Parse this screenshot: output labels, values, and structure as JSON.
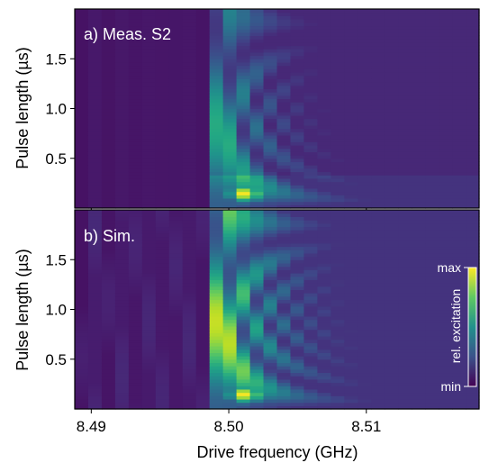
{
  "chart_data": [
    {
      "type": "heatmap",
      "panel_label": "a) Meas. S2",
      "xlabel": "",
      "ylabel": "Pulse length (µs)",
      "xlim": [
        8.4888,
        8.5182
      ],
      "ylim": [
        0.0,
        2.0
      ],
      "x_ticks": [
        8.49,
        8.5,
        8.51
      ],
      "y_ticks": [
        0.5,
        1.0,
        1.5
      ],
      "y_tick_labels": [
        "0.5",
        "1.0",
        "1.5"
      ],
      "resonance_center_ghz": 8.5003,
      "colormap": "viridis",
      "peak_region": {
        "x": 8.5012,
        "y": 0.15
      }
    },
    {
      "type": "heatmap",
      "panel_label": "b) Sim.",
      "xlabel": "Drive frequency (GHz)",
      "ylabel": "Pulse length (µs)",
      "xlim": [
        8.4888,
        8.5182
      ],
      "ylim": [
        0.0,
        2.0
      ],
      "x_ticks": [
        8.49,
        8.5,
        8.51
      ],
      "x_tick_labels": [
        "8.49",
        "8.50",
        "8.51"
      ],
      "y_ticks": [
        0.5,
        1.0,
        1.5
      ],
      "y_tick_labels": [
        "0.5",
        "1.0",
        "1.5"
      ],
      "resonance_center_ghz": 8.5003,
      "colormap": "viridis",
      "peak_region": {
        "x": 8.5012,
        "y": 0.15
      },
      "colorbar": {
        "label": "rel. excitation",
        "max_label": "max",
        "min_label": "min"
      }
    }
  ]
}
